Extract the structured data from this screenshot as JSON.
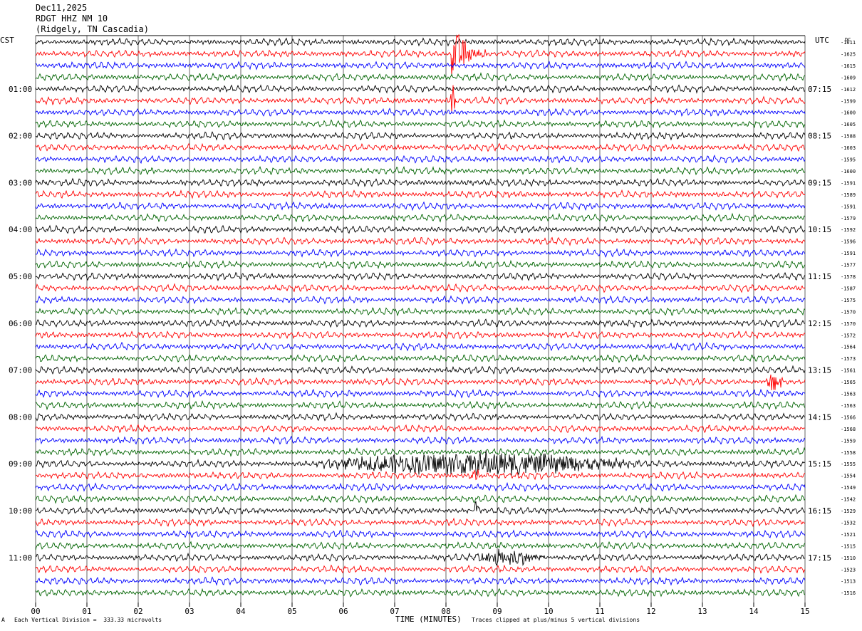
{
  "header": {
    "date": "Dec11,2025",
    "station": "RDGT HHZ NM 10",
    "location": "(Ridgely, TN Cascadia)"
  },
  "footer": {
    "scale_note": "Each Vertical Division =  333.33 microvolts",
    "clip_note": "Traces clipped at plus/minus 5 vertical divisions",
    "corner_mark": "A"
  },
  "colors": {
    "trace_cycle": [
      "#000000",
      "#ff0000",
      "#0000ff",
      "#006400"
    ],
    "gridline": "#000000",
    "background": "#ffffff"
  },
  "chart_data": {
    "type": "line",
    "subtype": "helicorder",
    "xlabel": "TIME (MINUTES)",
    "xlim": [
      0,
      15
    ],
    "x_ticks": [
      "00",
      "01",
      "02",
      "03",
      "04",
      "05",
      "06",
      "07",
      "08",
      "09",
      "10",
      "11",
      "12",
      "13",
      "14",
      "15"
    ],
    "left_axis_title": "CST",
    "right_axis_title": "UTC",
    "dc_title": "DC",
    "left_hour_labels": [
      "01:00",
      "02:00",
      "03:00",
      "04:00",
      "05:00",
      "06:00",
      "07:00",
      "08:00",
      "09:00",
      "10:00",
      "11:00"
    ],
    "right_hour_labels": [
      "07:15",
      "08:15",
      "09:15",
      "10:15",
      "11:15",
      "12:15",
      "13:15",
      "14:15",
      "15:15",
      "16:15",
      "17:15"
    ],
    "lines_per_hour": 4,
    "minutes_per_line": 15,
    "dc_offsets": [
      -1611,
      -1625,
      -1615,
      -1609,
      -1612,
      -1599,
      -1600,
      -1605,
      -1588,
      -1603,
      -1595,
      -1600,
      -1591,
      -1589,
      -1591,
      -1579,
      -1592,
      -1596,
      -1591,
      -1577,
      -1578,
      -1587,
      -1575,
      -1570,
      -1570,
      -1572,
      -1564,
      -1573,
      -1561,
      -1565,
      -1563,
      -1563,
      -1566,
      -1568,
      -1559,
      -1558,
      -1555,
      -1554,
      -1549,
      -1542,
      -1529,
      -1532,
      -1521,
      -1515,
      -1510,
      -1523,
      -1513,
      -1516
    ],
    "events": [
      {
        "trace": 1,
        "start_min": 8.1,
        "end_min": 8.8,
        "amp": 5,
        "note": "clipped spike"
      },
      {
        "trace": 5,
        "start_min": 8.05,
        "end_min": 8.2,
        "amp": 3.5
      },
      {
        "trace": 29,
        "start_min": 14.2,
        "end_min": 14.6,
        "amp": 2
      },
      {
        "trace": 36,
        "start_min": 5.2,
        "end_min": 12.0,
        "amp": 2.2,
        "note": "teleseism"
      },
      {
        "trace": 37,
        "start_min": 8.4,
        "end_min": 8.7,
        "amp": 1.8
      },
      {
        "trace": 40,
        "start_min": 8.5,
        "end_min": 8.7,
        "amp": 1.8
      },
      {
        "trace": 44,
        "start_min": 8.4,
        "end_min": 10.0,
        "amp": 1.3
      }
    ]
  }
}
